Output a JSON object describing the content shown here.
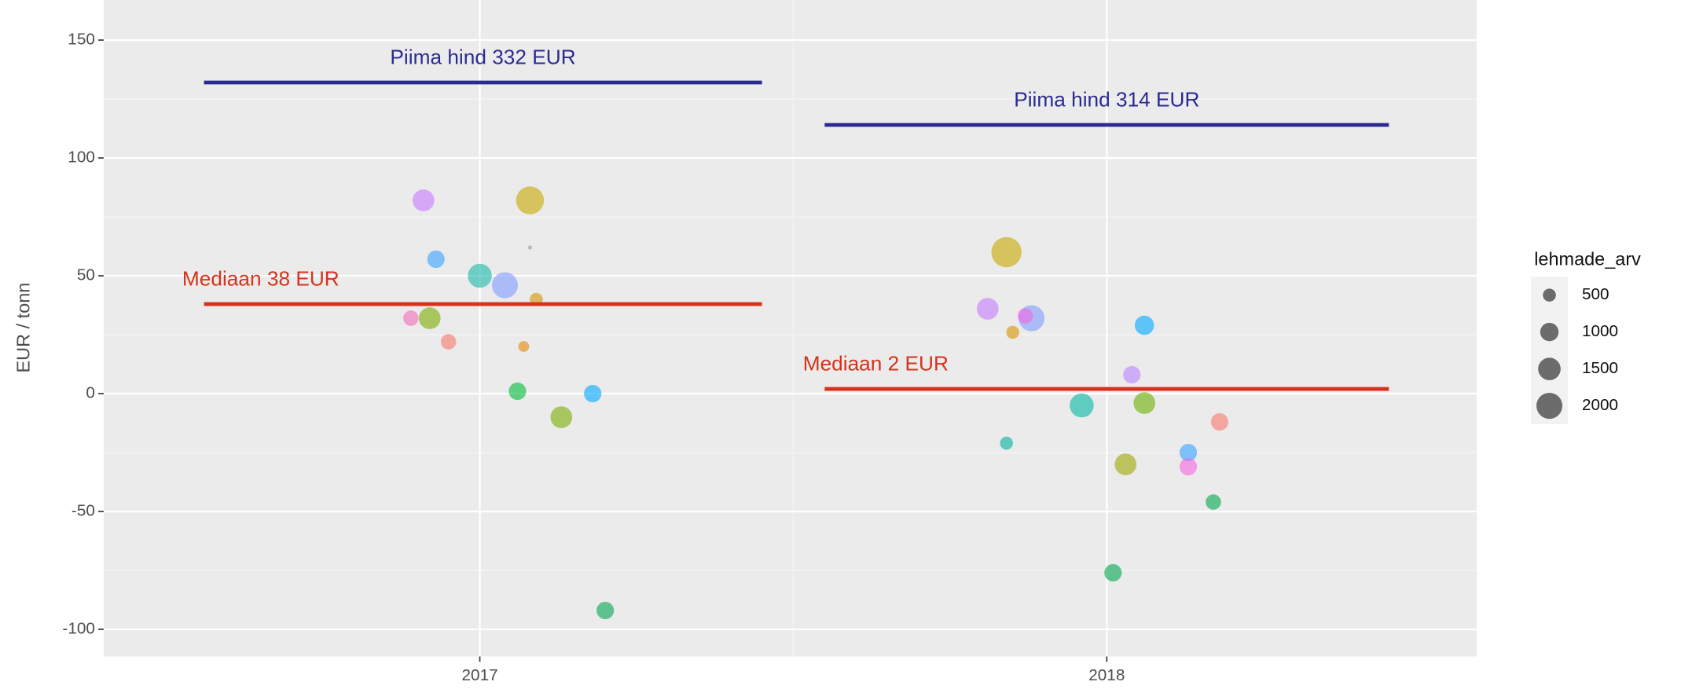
{
  "chart_data": {
    "type": "scatter",
    "ylabel": "EUR / tonn",
    "xlim": [
      2016.4,
      2018.59
    ],
    "xticks": [
      2017,
      2018
    ],
    "ylim": [
      -111.5,
      167
    ],
    "yticks": [
      -100,
      -50,
      0,
      50,
      100,
      150
    ],
    "grid": true,
    "x": [
      2016.91,
      2017.08,
      2017.08,
      2016.93,
      2017.0,
      2017.04,
      2017.09,
      2016.89,
      2016.92,
      2016.95,
      2017.07,
      2017.06,
      2017.18,
      2017.13,
      2017.2,
      2017.84,
      2017.81,
      2017.88,
      2017.87,
      2017.85,
      2018.06,
      2018.04,
      2017.96,
      2018.06,
      2018.18,
      2017.84,
      2018.13,
      2018.13,
      2018.03,
      2018.17,
      2018.01
    ],
    "values": [
      82,
      82,
      62,
      57,
      50,
      46,
      40,
      32,
      32,
      22,
      20,
      1,
      0,
      -10,
      -92,
      60,
      36,
      32,
      33,
      26,
      29,
      8,
      -5,
      -4,
      -12,
      -21,
      -25,
      -31,
      -30,
      -46,
      -76
    ],
    "sizes": [
      1400,
      2300,
      50,
      900,
      1700,
      2000,
      500,
      700,
      1400,
      700,
      350,
      900,
      900,
      1400,
      900,
      2700,
      1400,
      2000,
      700,
      500,
      1100,
      900,
      1700,
      1400,
      900,
      500,
      900,
      900,
      1400,
      700,
      900
    ],
    "colors": [
      "#c77cff",
      "#c8a800",
      "#999999",
      "#35a2ff",
      "#19b8a8",
      "#7f9bff",
      "#d39200",
      "#f36bb8",
      "#7cae00",
      "#f8766d",
      "#e58700",
      "#00ba38",
      "#00a9ff",
      "#7cae00",
      "#00a651",
      "#c8a800",
      "#c77cff",
      "#7f9bff",
      "#f564e3",
      "#d39200",
      "#00a9ff",
      "#b983ff",
      "#00b8a0",
      "#6ab100",
      "#f8766d",
      "#00b0a0",
      "#35a2ff",
      "#f564e3",
      "#9aa800",
      "#00a651",
      "#00a651"
    ],
    "segments": [
      {
        "label": "Piima hind 332 EUR",
        "x": [
          2016.56,
          2017.45
        ],
        "y": 132,
        "color": "#2b2a91"
      },
      {
        "label": "Piima hind 314 EUR",
        "x": [
          2017.55,
          2018.45
        ],
        "y": 114,
        "color": "#2b2a91"
      },
      {
        "label": "Mediaan 38 EUR",
        "x": [
          2016.56,
          2017.45
        ],
        "y": 38,
        "color": "#d8321c"
      },
      {
        "label": "Mediaan 2 EUR",
        "x": [
          2017.55,
          2018.45
        ],
        "y": 2,
        "color": "#d8321c"
      }
    ],
    "size_legend": {
      "title": "lehmade_arv",
      "values": [
        500,
        1000,
        1500,
        2000
      ]
    }
  }
}
